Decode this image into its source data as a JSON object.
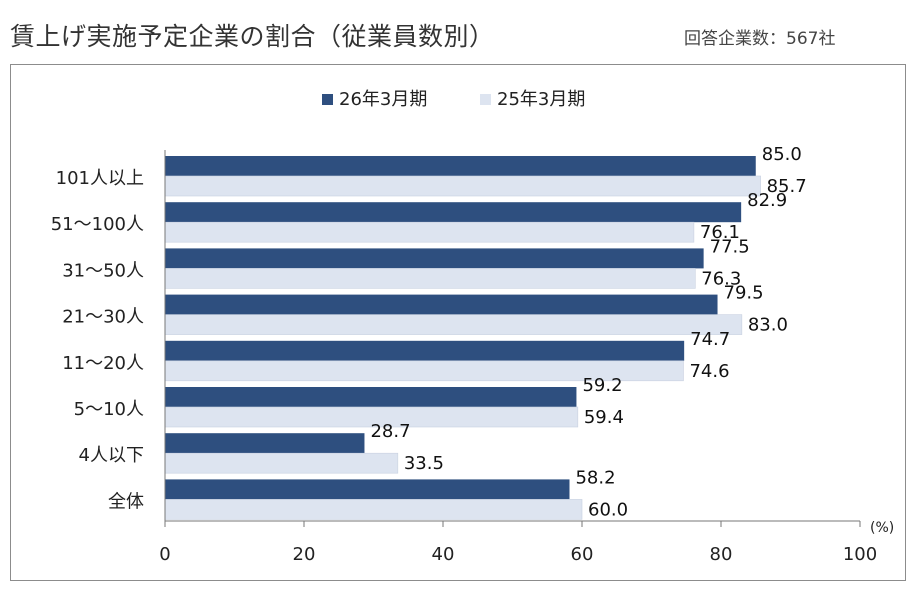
{
  "header": {
    "title": "賃上げ実施予定企業の割合（従業員数別）",
    "respondents": "回答企業数：567社"
  },
  "colors": {
    "series_1": "#2e4f7f",
    "series_2": "#dde4f0"
  },
  "chart_data": {
    "type": "bar",
    "orientation": "horizontal",
    "categories": [
      "101人以上",
      "51～100人",
      "31～50人",
      "21～30人",
      "11～20人",
      "5～10人",
      "4人以下",
      "全体"
    ],
    "series": [
      {
        "name": "26年3月期",
        "values": [
          85.0,
          82.9,
          77.5,
          79.5,
          74.7,
          59.2,
          28.7,
          58.2
        ]
      },
      {
        "name": "25年3月期",
        "values": [
          85.7,
          76.1,
          76.3,
          83.0,
          74.6,
          59.4,
          33.5,
          60.0
        ]
      }
    ],
    "x_ticks": [
      "0",
      "20",
      "40",
      "60",
      "80",
      "100"
    ],
    "xlim": [
      0,
      100
    ],
    "unit_label": "(%)",
    "legend_position": "top-center",
    "grid": false
  }
}
